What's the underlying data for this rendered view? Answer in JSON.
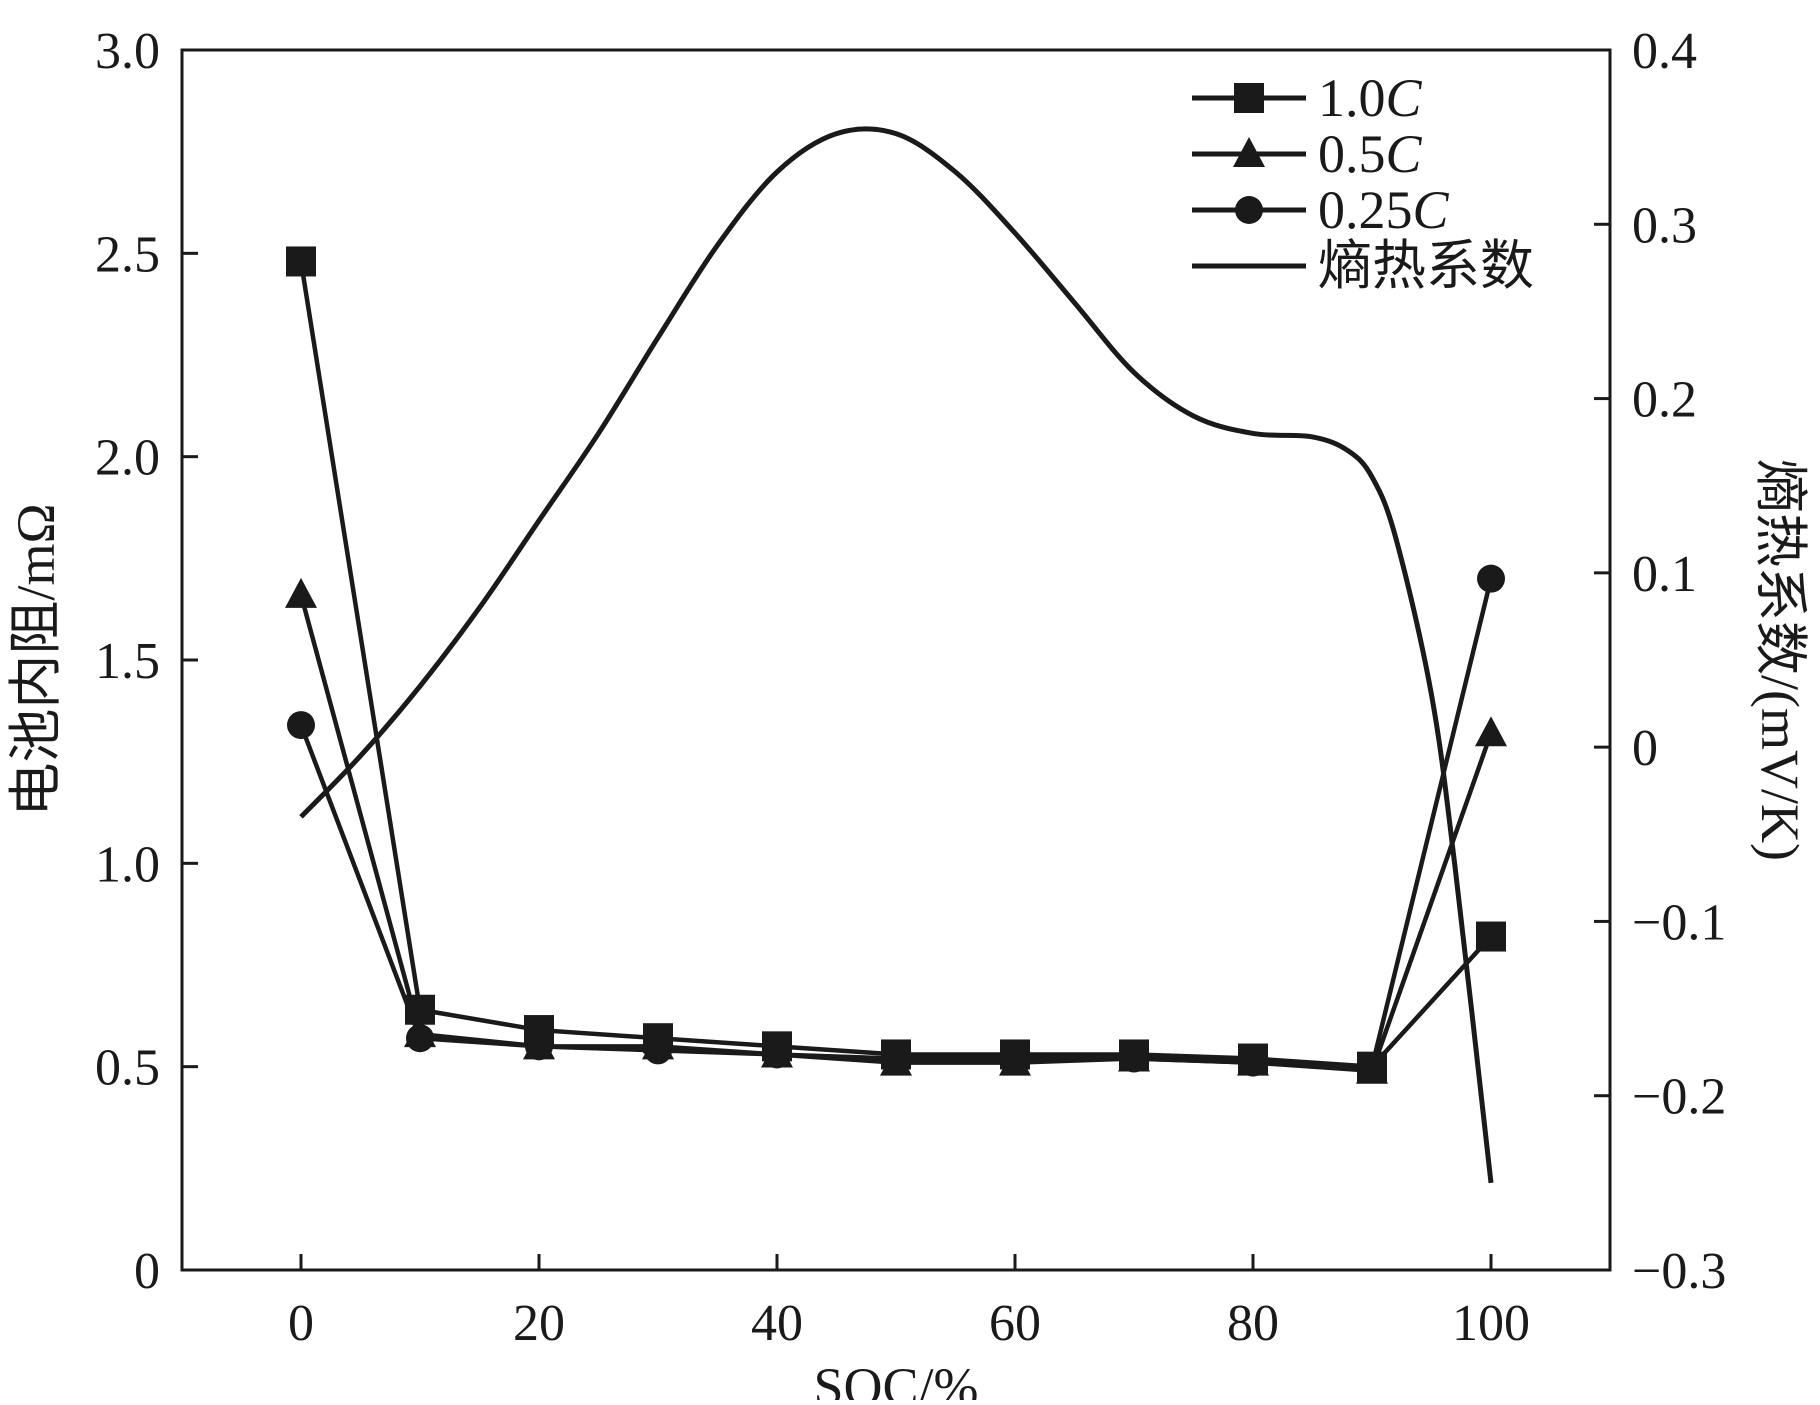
{
  "chart_data": {
    "type": "line",
    "xlabel": "SOC/%",
    "ylabel_left": "电池内阻/mΩ",
    "ylabel_right": "熵热系数/(mV/K)",
    "xlim": [
      -10,
      110
    ],
    "ylim_left": [
      0,
      3.0
    ],
    "ylim_right": [
      -0.3,
      0.4
    ],
    "x_ticks": [
      0,
      20,
      40,
      60,
      80,
      100
    ],
    "x_tick_labels": [
      "0",
      "20",
      "40",
      "60",
      "80",
      "100"
    ],
    "left_ticks": [
      0,
      0.5,
      1.0,
      1.5,
      2.0,
      2.5,
      3.0
    ],
    "left_tick_labels": [
      "0",
      "0.5",
      "1.0",
      "1.5",
      "2.0",
      "2.5",
      "3.0"
    ],
    "right_ticks": [
      -0.3,
      -0.2,
      -0.1,
      0,
      0.1,
      0.2,
      0.3,
      0.4
    ],
    "right_tick_labels": [
      "−0.3",
      "−0.2",
      "−0.1",
      "0",
      "0.1",
      "0.2",
      "0.3",
      "0.4"
    ],
    "legend_position": "top-right",
    "grid": false,
    "color": "#1a1a1a",
    "series": [
      {
        "name": "1.0C",
        "legend_prefix": "1.0",
        "legend_suffix": "C",
        "marker": "square",
        "axis": "left",
        "x": [
          0,
          10,
          20,
          30,
          40,
          50,
          60,
          70,
          80,
          90,
          100
        ],
        "values": [
          2.48,
          0.64,
          0.59,
          0.57,
          0.55,
          0.53,
          0.53,
          0.53,
          0.52,
          0.5,
          0.82
        ]
      },
      {
        "name": "0.5C",
        "legend_prefix": "0.5",
        "legend_suffix": "C",
        "marker": "triangle",
        "axis": "left",
        "x": [
          0,
          10,
          20,
          30,
          40,
          50,
          60,
          70,
          80,
          90,
          100
        ],
        "values": [
          1.66,
          0.58,
          0.55,
          0.55,
          0.53,
          0.51,
          0.51,
          0.52,
          0.51,
          0.49,
          1.32
        ]
      },
      {
        "name": "0.25C",
        "legend_prefix": "0.25",
        "legend_suffix": "C",
        "marker": "circle",
        "axis": "left",
        "x": [
          0,
          10,
          20,
          30,
          40,
          50,
          60,
          70,
          80,
          90,
          100
        ],
        "values": [
          1.34,
          0.57,
          0.55,
          0.54,
          0.53,
          0.52,
          0.52,
          0.52,
          0.51,
          0.5,
          1.7
        ]
      },
      {
        "name": "熵热系数",
        "legend_prefix": "熵热系数",
        "legend_suffix": "",
        "marker": "none",
        "axis": "right",
        "x": [
          0,
          5,
          10,
          15,
          20,
          25,
          30,
          35,
          40,
          45,
          50,
          55,
          60,
          65,
          70,
          75,
          80,
          85,
          88,
          90,
          92,
          95,
          97,
          100
        ],
        "values": [
          -0.04,
          -0.005,
          0.035,
          0.08,
          0.13,
          0.18,
          0.235,
          0.288,
          0.33,
          0.352,
          0.352,
          0.33,
          0.295,
          0.255,
          0.215,
          0.19,
          0.18,
          0.178,
          0.17,
          0.155,
          0.12,
          0.03,
          -0.07,
          -0.25
        ]
      }
    ]
  }
}
